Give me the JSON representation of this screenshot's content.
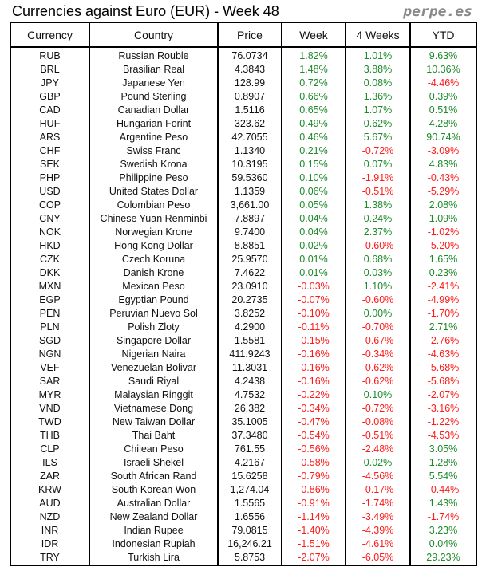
{
  "title": "Currencies against Euro (EUR) - Week 48",
  "brand": "perpe.es",
  "colors": {
    "positive": "#1e8a2a",
    "negative": "#ff1a1a"
  },
  "columns": [
    "Currency",
    "Country",
    "Price",
    "Week",
    "4 Weeks",
    "YTD"
  ],
  "rows": [
    [
      "RUB",
      "Russian Rouble",
      "76.0734",
      "1.82%",
      "1.01%",
      "9.63%"
    ],
    [
      "BRL",
      "Brasilian Real",
      "4.3843",
      "1.48%",
      "3.88%",
      "10.36%"
    ],
    [
      "JPY",
      "Japanese Yen",
      "128.99",
      "0.72%",
      "0.08%",
      "-4.46%"
    ],
    [
      "GBP",
      "Pound Sterling",
      "0.8907",
      "0.66%",
      "1.36%",
      "0.39%"
    ],
    [
      "CAD",
      "Canadian Dollar",
      "1.5116",
      "0.65%",
      "1.07%",
      "0.51%"
    ],
    [
      "HUF",
      "Hungarian Forint",
      "323.62",
      "0.49%",
      "0.62%",
      "4.28%"
    ],
    [
      "ARS",
      "Argentine Peso",
      "42.7055",
      "0.46%",
      "5.67%",
      "90.74%"
    ],
    [
      "CHF",
      "Swiss Franc",
      "1.1340",
      "0.21%",
      "-0.72%",
      "-3.09%"
    ],
    [
      "SEK",
      "Swedish Krona",
      "10.3195",
      "0.15%",
      "0.07%",
      "4.83%"
    ],
    [
      "PHP",
      "Philippine Peso",
      "59.5360",
      "0.10%",
      "-1.91%",
      "-0.43%"
    ],
    [
      "USD",
      "United States Dollar",
      "1.1359",
      "0.06%",
      "-0.51%",
      "-5.29%"
    ],
    [
      "COP",
      "Colombian Peso",
      "3,661.00",
      "0.05%",
      "1.38%",
      "2.08%"
    ],
    [
      "CNY",
      "Chinese Yuan Renminbi",
      "7.8897",
      "0.04%",
      "0.24%",
      "1.09%"
    ],
    [
      "NOK",
      "Norwegian Krone",
      "9.7400",
      "0.04%",
      "2.37%",
      "-1.02%"
    ],
    [
      "HKD",
      "Hong Kong Dollar",
      "8.8851",
      "0.02%",
      "-0.60%",
      "-5.20%"
    ],
    [
      "CZK",
      "Czech Koruna",
      "25.9570",
      "0.01%",
      "0.68%",
      "1.65%"
    ],
    [
      "DKK",
      "Danish Krone",
      "7.4622",
      "0.01%",
      "0.03%",
      "0.23%"
    ],
    [
      "MXN",
      "Mexican Peso",
      "23.0910",
      "-0.03%",
      "1.10%",
      "-2.41%"
    ],
    [
      "EGP",
      "Egyptian Pound",
      "20.2735",
      "-0.07%",
      "-0.60%",
      "-4.99%"
    ],
    [
      "PEN",
      "Peruvian Nuevo Sol",
      "3.8252",
      "-0.10%",
      "0.00%",
      "-1.70%"
    ],
    [
      "PLN",
      "Polish Zloty",
      "4.2900",
      "-0.11%",
      "-0.70%",
      "2.71%"
    ],
    [
      "SGD",
      "Singapore Dollar",
      "1.5581",
      "-0.15%",
      "-0.67%",
      "-2.76%"
    ],
    [
      "NGN",
      "Nigerian Naira",
      "411.9243",
      "-0.16%",
      "-0.34%",
      "-4.63%"
    ],
    [
      "VEF",
      "Venezuelan Bolivar",
      "11.3031",
      "-0.16%",
      "-0.62%",
      "-5.68%"
    ],
    [
      "SAR",
      "Saudi Riyal",
      "4.2438",
      "-0.16%",
      "-0.62%",
      "-5.68%"
    ],
    [
      "MYR",
      "Malaysian Ringgit",
      "4.7532",
      "-0.22%",
      "0.10%",
      "-2.07%"
    ],
    [
      "VND",
      "Vietnamese Dong",
      "26,382",
      "-0.34%",
      "-0.72%",
      "-3.16%"
    ],
    [
      "TWD",
      "New Taiwan Dollar",
      "35.1005",
      "-0.47%",
      "-0.08%",
      "-1.22%"
    ],
    [
      "THB",
      "Thai Baht",
      "37.3480",
      "-0.54%",
      "-0.51%",
      "-4.53%"
    ],
    [
      "CLP",
      "Chilean Peso",
      "761.55",
      "-0.56%",
      "-2.48%",
      "3.05%"
    ],
    [
      "ILS",
      "Israeli Shekel",
      "4.2167",
      "-0.58%",
      "0.02%",
      "1.28%"
    ],
    [
      "ZAR",
      "South African Rand",
      "15.6258",
      "-0.79%",
      "-4.56%",
      "5.54%"
    ],
    [
      "KRW",
      "South Korean Won",
      "1,274.04",
      "-0.86%",
      "-0.17%",
      "-0.44%"
    ],
    [
      "AUD",
      "Australian Dollar",
      "1.5565",
      "-0.91%",
      "-1.74%",
      "1.43%"
    ],
    [
      "NZD",
      "New Zealand Dollar",
      "1.6556",
      "-1.14%",
      "-3.49%",
      "-1.74%"
    ],
    [
      "INR",
      "Indian Rupee",
      "79.0815",
      "-1.40%",
      "-4.39%",
      "3.23%"
    ],
    [
      "IDR",
      "Indonesian Rupiah",
      "16,246.21",
      "-1.51%",
      "-4.61%",
      "0.04%"
    ],
    [
      "TRY",
      "Turkish Lira",
      "5.8753",
      "-2.07%",
      "-6.05%",
      "29.23%"
    ]
  ]
}
